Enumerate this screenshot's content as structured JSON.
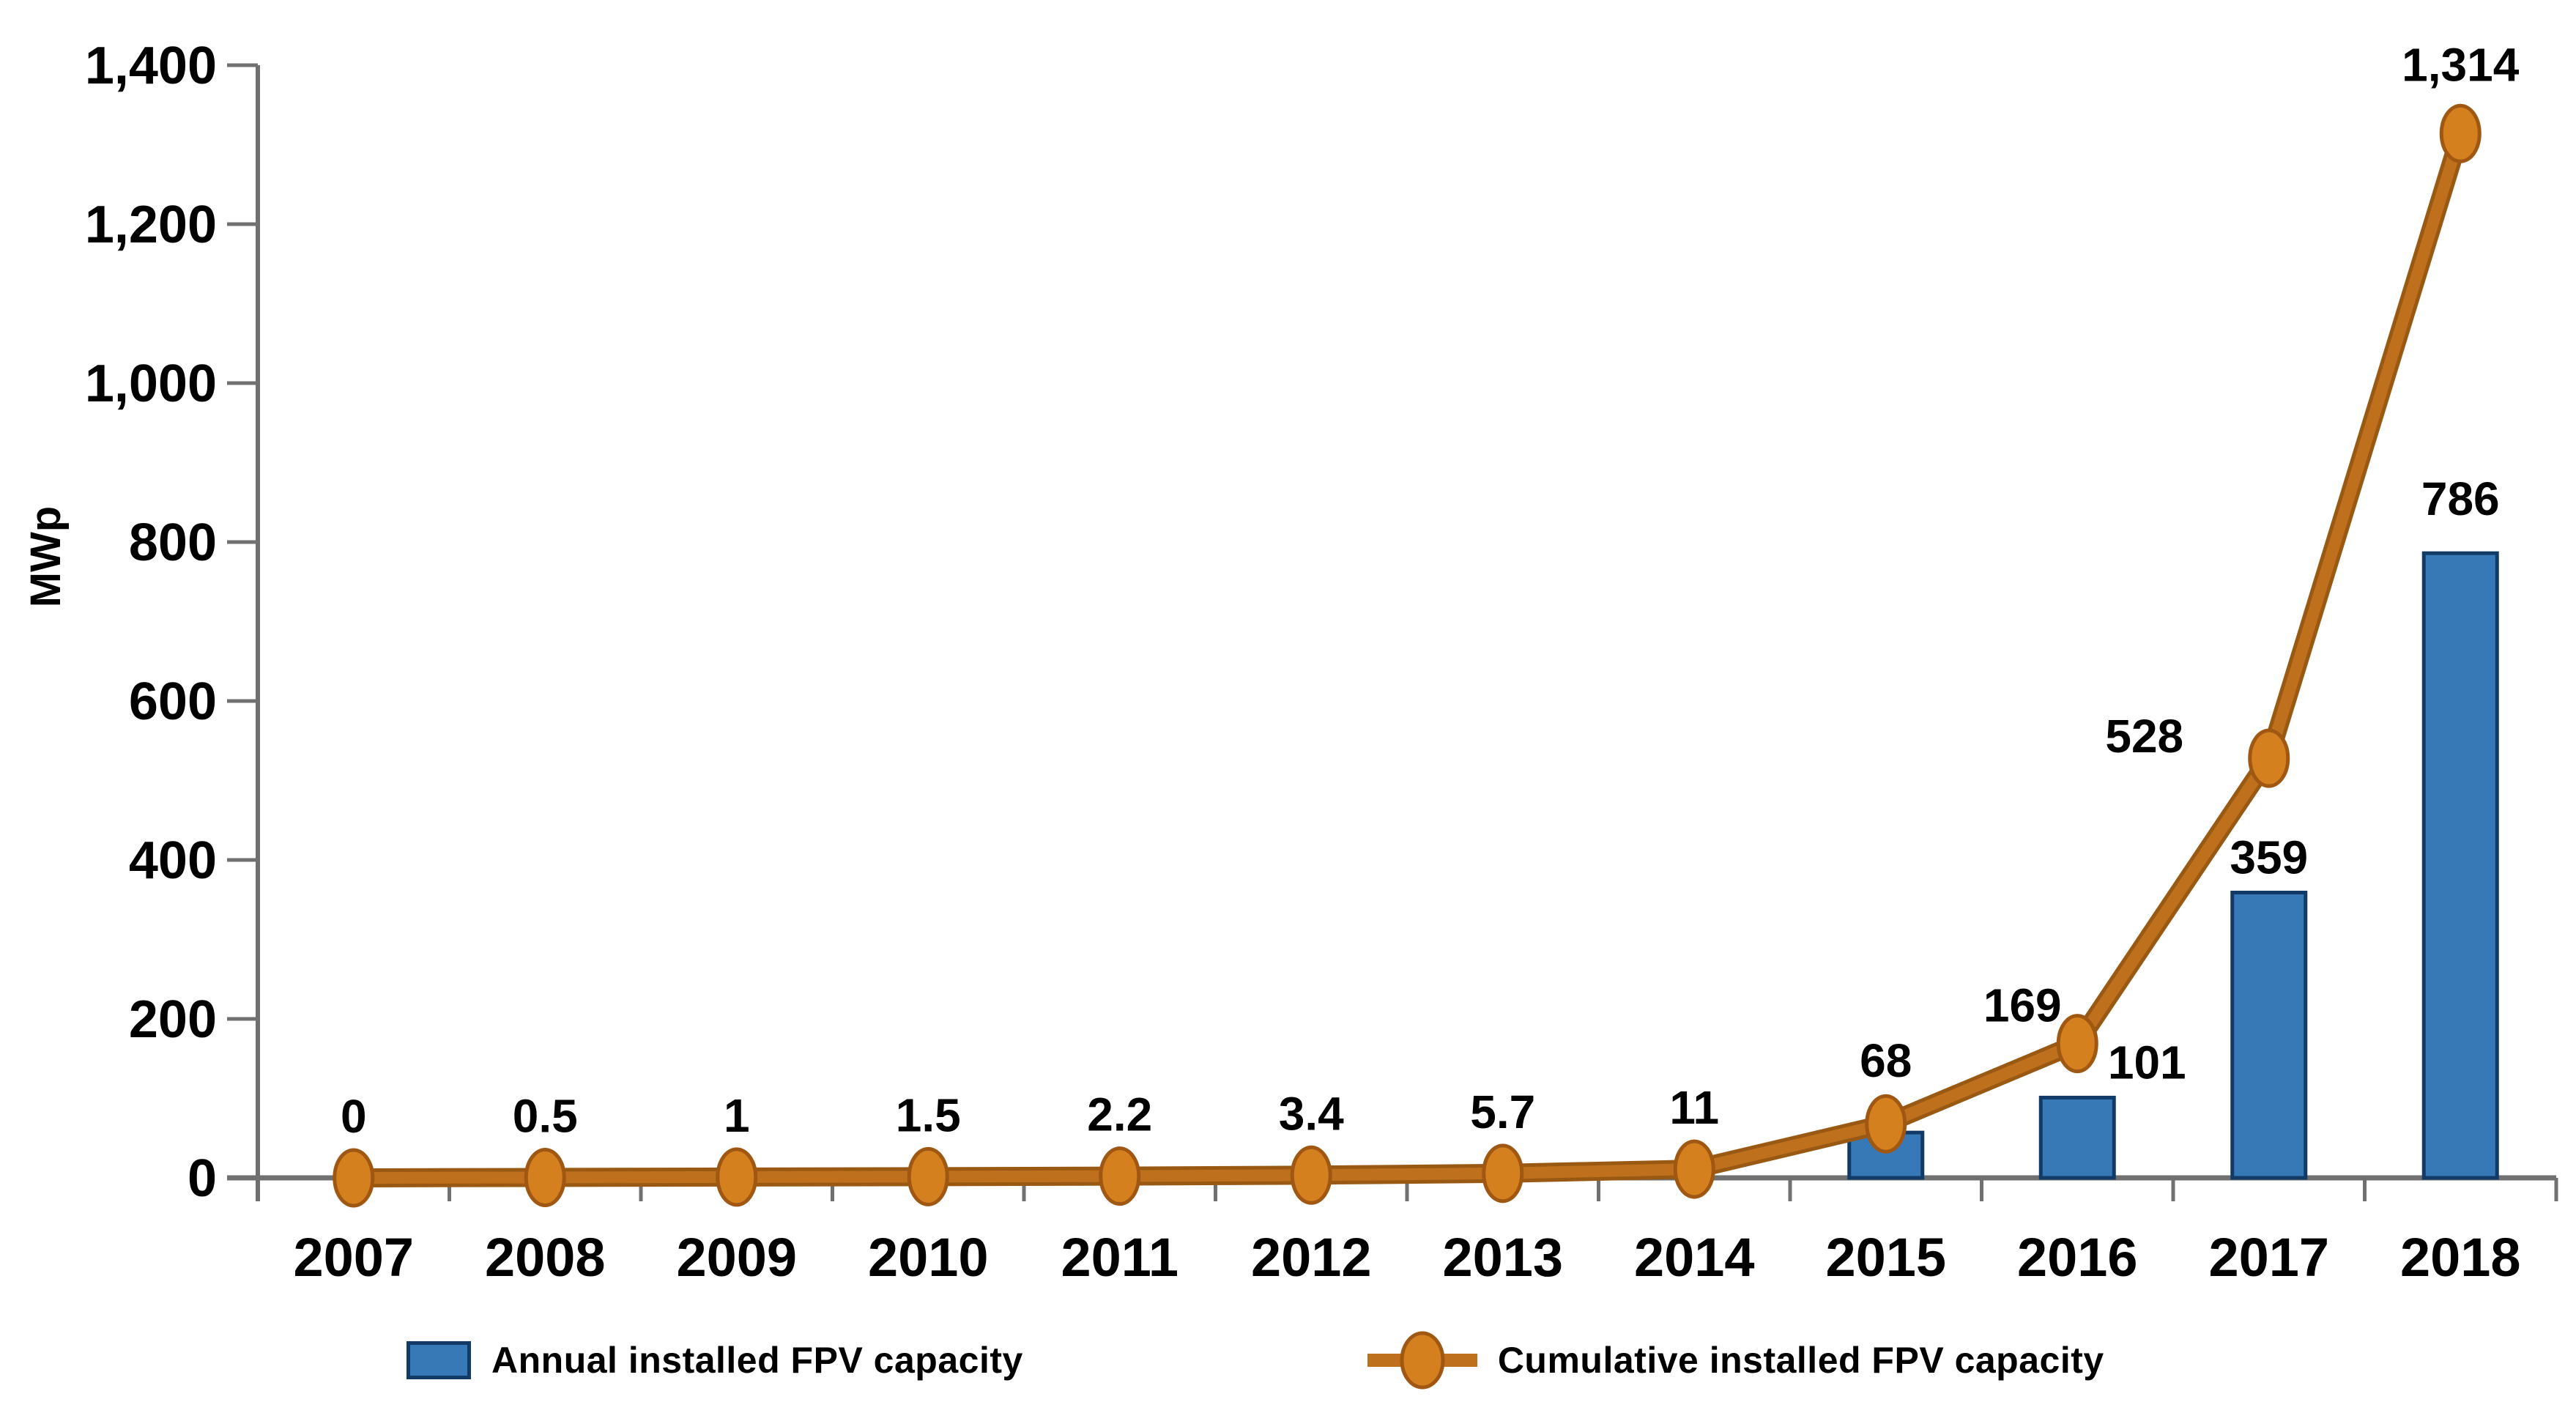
{
  "chart_data": {
    "type": "combo",
    "title": "",
    "categories": [
      "2007",
      "2008",
      "2009",
      "2010",
      "2011",
      "2012",
      "2013",
      "2014",
      "2015",
      "2016",
      "2017",
      "2018"
    ],
    "series": [
      {
        "name": "Annual installed FPV capacity",
        "chart_type": "bar",
        "color": "#3779B7",
        "border_color": "#123A66",
        "values": [
          null,
          null,
          null,
          null,
          null,
          null,
          null,
          null,
          57,
          101,
          359,
          786
        ],
        "data_labels": [
          null,
          null,
          null,
          null,
          null,
          null,
          null,
          null,
          null,
          "101",
          "359",
          "786"
        ],
        "label_offsets": [
          null,
          null,
          null,
          null,
          null,
          null,
          null,
          null,
          null,
          [
            95,
            -26
          ],
          [
            0,
            -26
          ],
          [
            0,
            -52
          ]
        ]
      },
      {
        "name": "Cumulative installed FPV capacity",
        "chart_type": "line",
        "line_color": "#BE701C",
        "line_dark": "#9A5913",
        "marker_fill": "#D4801F",
        "marker_stroke": "#A05712",
        "values": [
          0,
          0.5,
          1,
          1.5,
          2.2,
          3.4,
          5.7,
          11,
          68,
          169,
          528,
          1314
        ],
        "data_labels": [
          "0",
          "0.5",
          "1",
          "1.5",
          "2.2",
          "3.4",
          "5.7",
          "11",
          "68",
          "169",
          "528",
          "1,314"
        ],
        "label_offsets": [
          [
            0,
            -62
          ],
          [
            0,
            -62
          ],
          [
            0,
            -62
          ],
          [
            0,
            -62
          ],
          [
            0,
            -62
          ],
          [
            0,
            -62
          ],
          [
            0,
            -62
          ],
          [
            0,
            -62
          ],
          [
            0,
            -64
          ],
          [
            -75,
            -30
          ],
          [
            -170,
            -8
          ],
          [
            0,
            -72
          ]
        ]
      }
    ],
    "ylabel": "MWp",
    "ylim": [
      0,
      1400
    ],
    "ytick_interval": 200,
    "ytick_labels": [
      "0",
      "200",
      "400",
      "600",
      "800",
      "1,000",
      "1,200",
      "1,400"
    ],
    "grid": false,
    "legend_position": "bottom",
    "axis_color": "#707070",
    "text_color": "#000000",
    "background": "#FFFFFF"
  }
}
